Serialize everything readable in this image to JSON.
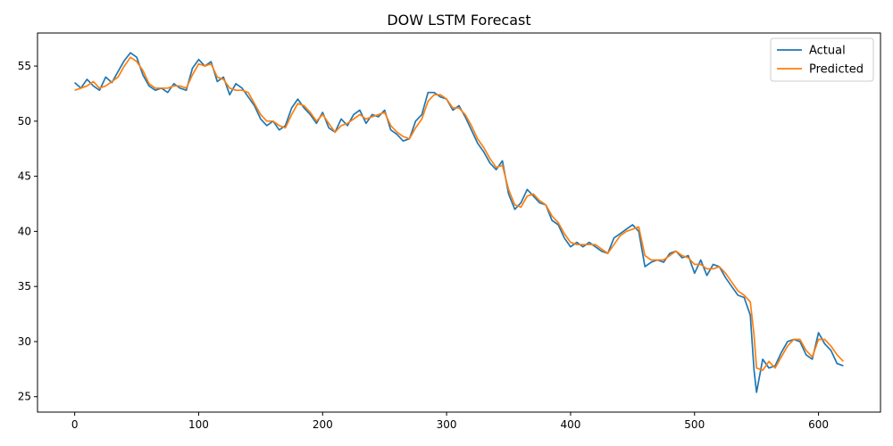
{
  "chart_data": {
    "type": "line",
    "title": "DOW LSTM Forecast",
    "xlabel": "",
    "ylabel": "",
    "xlim": [
      -30,
      650
    ],
    "ylim": [
      23.6,
      58.0
    ],
    "xticks": [
      0,
      100,
      200,
      300,
      400,
      500,
      600
    ],
    "yticks": [
      25,
      30,
      35,
      40,
      45,
      50,
      55
    ],
    "grid": false,
    "legend": "top-right",
    "series": [
      {
        "name": "Actual",
        "color": "#1f77b4",
        "x": [
          0,
          5,
          10,
          15,
          20,
          25,
          30,
          35,
          40,
          45,
          50,
          55,
          60,
          65,
          70,
          75,
          80,
          85,
          90,
          95,
          100,
          105,
          110,
          115,
          120,
          125,
          130,
          135,
          140,
          145,
          150,
          155,
          160,
          165,
          170,
          175,
          180,
          185,
          190,
          195,
          200,
          205,
          210,
          215,
          220,
          225,
          230,
          235,
          240,
          245,
          250,
          255,
          260,
          265,
          270,
          275,
          280,
          285,
          290,
          295,
          300,
          305,
          310,
          315,
          320,
          325,
          330,
          335,
          340,
          345,
          350,
          355,
          360,
          365,
          370,
          375,
          380,
          385,
          390,
          395,
          400,
          405,
          410,
          415,
          420,
          425,
          430,
          435,
          440,
          445,
          450,
          455,
          460,
          465,
          470,
          475,
          480,
          485,
          490,
          495,
          500,
          505,
          510,
          515,
          520,
          525,
          530,
          535,
          540,
          545,
          548,
          550,
          555,
          560,
          565,
          570,
          575,
          580,
          585,
          590,
          595,
          600,
          605,
          610,
          615,
          620
        ],
        "values": [
          53.5,
          53.0,
          53.8,
          53.2,
          52.8,
          54.0,
          53.5,
          54.5,
          55.5,
          56.2,
          55.8,
          54.2,
          53.2,
          52.8,
          53.0,
          52.6,
          53.4,
          53.0,
          52.8,
          54.8,
          55.6,
          55.0,
          55.4,
          53.6,
          54.0,
          52.4,
          53.4,
          53.0,
          52.2,
          51.4,
          50.2,
          49.6,
          50.0,
          49.2,
          49.6,
          51.2,
          52.0,
          51.2,
          50.6,
          49.8,
          50.8,
          49.4,
          49.0,
          50.2,
          49.6,
          50.6,
          51.0,
          49.8,
          50.6,
          50.4,
          51.0,
          49.2,
          48.8,
          48.2,
          48.4,
          50.0,
          50.6,
          52.6,
          52.6,
          52.2,
          52.0,
          51.0,
          51.4,
          50.4,
          49.2,
          48.0,
          47.2,
          46.2,
          45.6,
          46.4,
          43.4,
          42.0,
          42.6,
          43.8,
          43.2,
          42.6,
          42.4,
          41.0,
          40.6,
          39.4,
          38.6,
          39.0,
          38.6,
          39.0,
          38.6,
          38.2,
          38.0,
          39.4,
          39.8,
          40.2,
          40.6,
          40.0,
          36.8,
          37.2,
          37.4,
          37.2,
          38.0,
          38.2,
          37.6,
          37.8,
          36.2,
          37.4,
          36.0,
          37.0,
          36.8,
          35.8,
          35.0,
          34.2,
          34.0,
          32.4,
          27.4,
          25.4,
          28.4,
          27.6,
          27.8,
          29.0,
          30.0,
          30.2,
          30.0,
          28.8,
          28.4,
          30.8,
          29.8,
          29.2,
          28.0,
          27.8
        ]
      },
      {
        "name": "Predicted",
        "color": "#ff7f0e",
        "x": [
          0,
          5,
          10,
          15,
          20,
          25,
          30,
          35,
          40,
          45,
          50,
          55,
          60,
          65,
          70,
          75,
          80,
          85,
          90,
          95,
          100,
          105,
          110,
          115,
          120,
          125,
          130,
          135,
          140,
          145,
          150,
          155,
          160,
          165,
          170,
          175,
          180,
          185,
          190,
          195,
          200,
          205,
          210,
          215,
          220,
          225,
          230,
          235,
          240,
          245,
          250,
          255,
          260,
          265,
          270,
          275,
          280,
          285,
          290,
          295,
          300,
          305,
          310,
          315,
          320,
          325,
          330,
          335,
          340,
          345,
          350,
          355,
          360,
          365,
          370,
          375,
          380,
          385,
          390,
          395,
          400,
          405,
          410,
          415,
          420,
          425,
          430,
          435,
          440,
          445,
          450,
          455,
          460,
          465,
          470,
          475,
          480,
          485,
          490,
          495,
          500,
          505,
          510,
          515,
          520,
          525,
          530,
          535,
          540,
          545,
          548,
          550,
          555,
          560,
          565,
          570,
          575,
          580,
          585,
          590,
          595,
          600,
          605,
          610,
          615,
          620
        ],
        "values": [
          52.8,
          53.0,
          53.2,
          53.6,
          53.0,
          53.2,
          53.6,
          54.0,
          55.0,
          55.8,
          55.4,
          54.6,
          53.4,
          53.0,
          53.0,
          53.0,
          53.2,
          53.2,
          53.0,
          54.2,
          55.2,
          55.0,
          55.2,
          54.0,
          53.8,
          53.0,
          52.8,
          52.8,
          52.6,
          51.6,
          50.6,
          50.0,
          50.0,
          49.6,
          49.4,
          50.6,
          51.6,
          51.4,
          50.8,
          50.0,
          50.6,
          49.8,
          49.0,
          49.6,
          49.8,
          50.2,
          50.6,
          50.2,
          50.4,
          50.6,
          50.8,
          49.6,
          49.0,
          48.6,
          48.4,
          49.4,
          50.2,
          51.8,
          52.4,
          52.4,
          52.0,
          51.2,
          51.2,
          50.6,
          49.6,
          48.4,
          47.6,
          46.6,
          45.8,
          46.0,
          43.8,
          42.4,
          42.2,
          43.2,
          43.4,
          42.8,
          42.4,
          41.4,
          40.8,
          39.8,
          39.0,
          38.8,
          38.8,
          38.8,
          38.8,
          38.4,
          38.0,
          38.8,
          39.6,
          40.0,
          40.2,
          40.4,
          37.8,
          37.4,
          37.4,
          37.4,
          37.8,
          38.2,
          37.8,
          37.6,
          37.0,
          37.0,
          36.6,
          36.6,
          36.8,
          36.2,
          35.4,
          34.6,
          34.2,
          33.6,
          30.6,
          27.6,
          27.4,
          28.2,
          27.6,
          28.6,
          29.6,
          30.2,
          30.2,
          29.2,
          28.6,
          30.2,
          30.2,
          29.6,
          28.8,
          28.2
        ]
      }
    ]
  }
}
